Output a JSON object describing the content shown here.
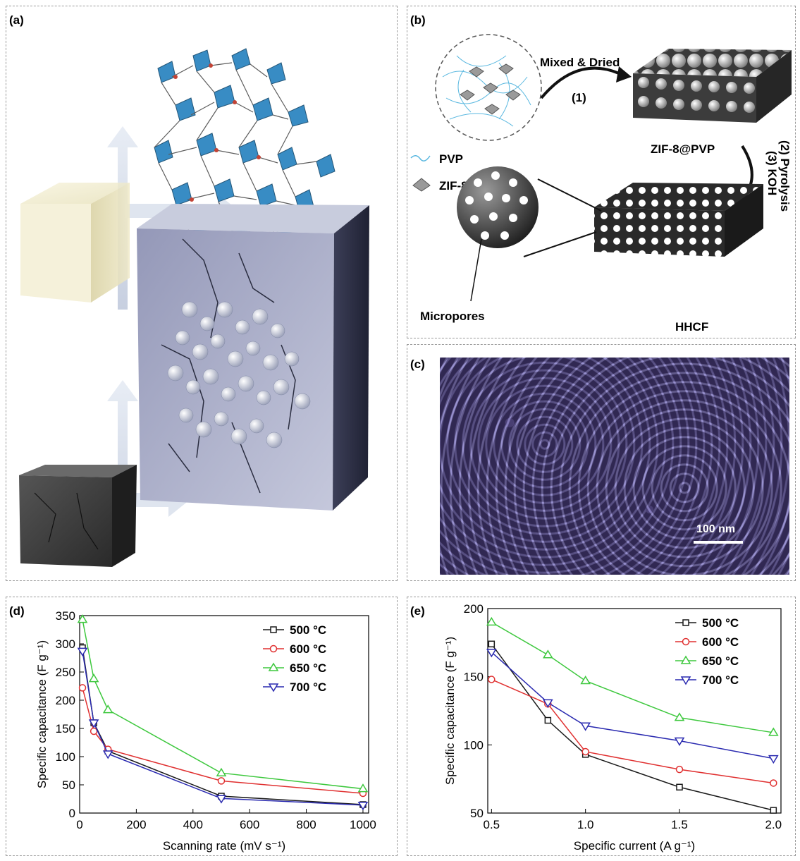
{
  "panels": {
    "a": {
      "label": "(a)"
    },
    "b": {
      "label": "(b)",
      "step1_text": "Mixed & Dried",
      "step1_num": "(1)",
      "legend_pvp": "PVP",
      "legend_zif8": "ZIF-8",
      "product1": "ZIF-8@PVP",
      "step2_text": "(2) Pyrolysis",
      "step3_text": "(3) KOH",
      "micropores": "Micropores",
      "product2": "HHCF"
    },
    "c": {
      "label": "(c)",
      "scale_bar": "100 nm"
    },
    "d": {
      "label": "(d)"
    },
    "e": {
      "label": "(e)"
    }
  },
  "colors": {
    "500": "#1a1a1a",
    "600": "#e03030",
    "650": "#3ec83e",
    "700": "#2a2ab0"
  },
  "chart_data": [
    {
      "type": "line",
      "panel": "d",
      "xlabel": "Scanning rate (mV s⁻¹)",
      "ylabel": "Specific capacitance (F g⁻¹)",
      "xlim": [
        0,
        1020
      ],
      "ylim": [
        0,
        350
      ],
      "xticks": [
        "0",
        "200",
        "400",
        "600",
        "800",
        "1000"
      ],
      "yticks": [
        "0",
        "50",
        "100",
        "150",
        "200",
        "250",
        "300",
        "350"
      ],
      "legend_position": "top-right",
      "series": [
        {
          "name": "500 °C",
          "marker": "square",
          "color_key": "500",
          "x": [
            10,
            50,
            100,
            500,
            1000
          ],
          "y": [
            293,
            160,
            110,
            30,
            15
          ]
        },
        {
          "name": "600 °C",
          "marker": "circle",
          "color_key": "600",
          "x": [
            10,
            50,
            100,
            500,
            1000
          ],
          "y": [
            222,
            145,
            113,
            57,
            35
          ]
        },
        {
          "name": "650 °C",
          "marker": "triangle-up",
          "color_key": "650",
          "x": [
            10,
            50,
            100,
            500,
            1000
          ],
          "y": [
            343,
            238,
            183,
            71,
            43
          ]
        },
        {
          "name": "700 °C",
          "marker": "triangle-down",
          "color_key": "700",
          "x": [
            10,
            50,
            100,
            500,
            1000
          ],
          "y": [
            287,
            160,
            105,
            26,
            14
          ]
        }
      ]
    },
    {
      "type": "line",
      "panel": "e",
      "xlabel": "Specific current (A g⁻¹)",
      "ylabel": "Specific capacitance (F g⁻¹)",
      "xlim": [
        0.48,
        2.04
      ],
      "ylim": [
        50,
        200
      ],
      "xticks": [
        "0.5",
        "1.0",
        "1.5",
        "2.0"
      ],
      "yticks": [
        "50",
        "100",
        "150",
        "200"
      ],
      "legend_position": "top-right",
      "series": [
        {
          "name": "500 °C",
          "marker": "square",
          "color_key": "500",
          "x": [
            0.5,
            0.8,
            1.0,
            1.5,
            2.0
          ],
          "y": [
            174,
            118,
            93,
            69,
            52
          ]
        },
        {
          "name": "600 °C",
          "marker": "circle",
          "color_key": "600",
          "x": [
            0.5,
            0.8,
            1.0,
            1.5,
            2.0
          ],
          "y": [
            148,
            130,
            95,
            82,
            72
          ]
        },
        {
          "name": "650 °C",
          "marker": "triangle-up",
          "color_key": "650",
          "x": [
            0.5,
            0.8,
            1.0,
            1.5,
            2.0
          ],
          "y": [
            190,
            166,
            147,
            120,
            109
          ]
        },
        {
          "name": "700 °C",
          "marker": "triangle-down",
          "color_key": "700",
          "x": [
            0.5,
            0.8,
            1.0,
            1.5,
            2.0
          ],
          "y": [
            168,
            131,
            114,
            103,
            90
          ]
        }
      ]
    }
  ]
}
